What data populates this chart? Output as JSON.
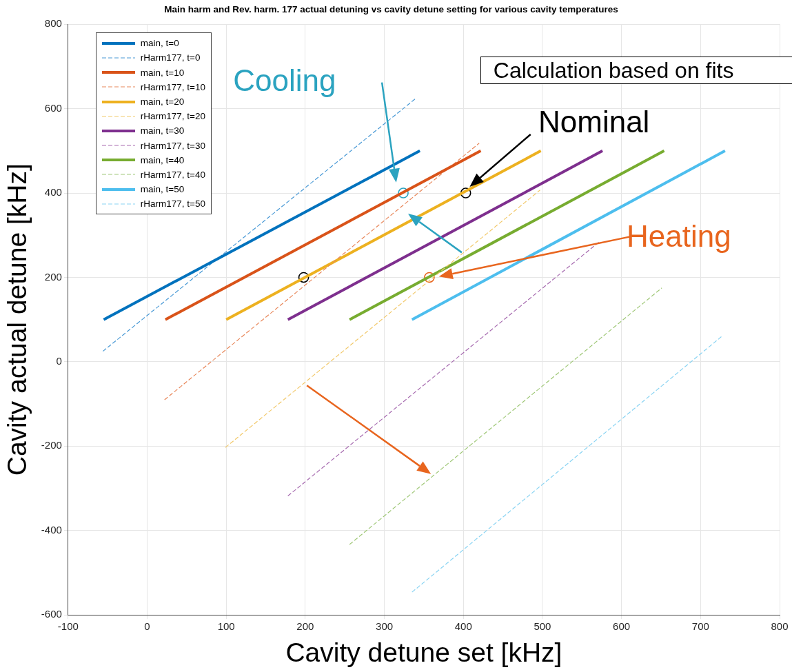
{
  "chart_data": {
    "type": "line",
    "title": "Main harm and Rev. harm. 177 actual detuning vs cavity detune setting for various cavity temperatures",
    "xlabel": "Cavity detune set [kHz]",
    "ylabel": "Cavity actual detune [kHz]",
    "xlim": [
      -100,
      800
    ],
    "xticks": [
      -100,
      0,
      100,
      200,
      300,
      400,
      500,
      600,
      700,
      800
    ],
    "ylim": [
      -600,
      800
    ],
    "yticks": [
      -600,
      -400,
      -200,
      0,
      200,
      400,
      600,
      800
    ],
    "grid": true,
    "legend": "top left",
    "marker": "none",
    "annotations": [
      "Cooling",
      {
        "text": "Nominal",
        "x": 403,
        "y": 400
      },
      "Heating",
      "Calculation based on fits"
    ],
    "series": [
      {
        "name": "main, t=0",
        "color": "#0072bd",
        "line_style": "solid",
        "x": [
          -55,
          345
        ],
        "values": [
          100,
          500
        ]
      },
      {
        "name": "rHarm177, t=0",
        "color": "#4a9ad6",
        "line_style": "dashed",
        "x": [
          -56,
          339
        ],
        "values": [
          25,
          623
        ]
      },
      {
        "name": "main, t=10",
        "color": "#d95319",
        "line_style": "solid",
        "x": [
          23,
          422
        ],
        "values": [
          100,
          500
        ]
      },
      {
        "name": "rHarm177, t=10",
        "color": "#e8875a",
        "line_style": "dashed",
        "x": [
          22,
          420
        ],
        "values": [
          -90,
          518
        ]
      },
      {
        "name": "main, t=20",
        "color": "#edb120",
        "line_style": "solid",
        "x": [
          100,
          498
        ],
        "values": [
          100,
          500
        ]
      },
      {
        "name": "rHarm177, t=20",
        "color": "#f2c96b",
        "line_style": "dashed",
        "x": [
          99,
          497
        ],
        "values": [
          -203,
          407
        ]
      },
      {
        "name": "main, t=30",
        "color": "#7e2f8e",
        "line_style": "solid",
        "x": [
          178,
          576
        ],
        "values": [
          100,
          500
        ]
      },
      {
        "name": "rHarm177, t=30",
        "color": "#a76bb0",
        "line_style": "dashed",
        "x": [
          178,
          573
        ],
        "values": [
          -318,
          286
        ]
      },
      {
        "name": "main, t=40",
        "color": "#77ac30",
        "line_style": "solid",
        "x": [
          256,
          654
        ],
        "values": [
          100,
          500
        ]
      },
      {
        "name": "rHarm177, t=40",
        "color": "#a0c878",
        "line_style": "dashed",
        "x": [
          256,
          651
        ],
        "values": [
          -433,
          175
        ]
      },
      {
        "name": "main, t=50",
        "color": "#4dbeee",
        "line_style": "solid",
        "x": [
          335,
          731
        ],
        "values": [
          100,
          500
        ]
      },
      {
        "name": "rHarm177, t=50",
        "color": "#8ad4f3",
        "line_style": "dashed",
        "x": [
          335,
          728
        ],
        "values": [
          -546,
          62
        ]
      },
      {
        "type": "scatter",
        "marker": "circle",
        "x": [
          324,
          403,
          198,
          357
        ],
        "values": [
          400,
          400,
          200,
          200
        ],
        "colors": [
          "#2ba3c0",
          "#000000",
          "#000000",
          "#e8651e"
        ]
      }
    ]
  }
}
